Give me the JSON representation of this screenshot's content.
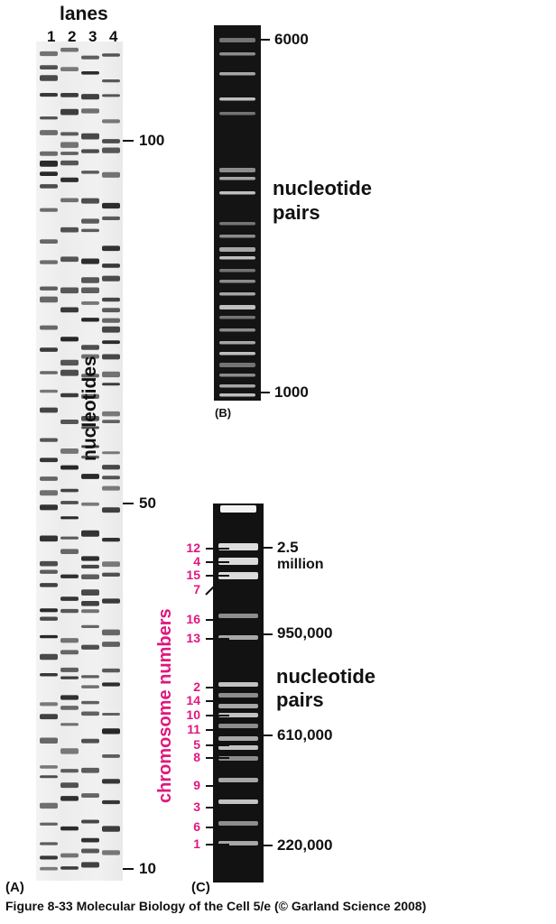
{
  "panelA": {
    "title": "lanes",
    "lane_labels": [
      "1",
      "2",
      "3",
      "4"
    ],
    "axis_label": "nucleotides",
    "marks": [
      {
        "label": "100",
        "value": 100
      },
      {
        "label": "50",
        "value": 50
      },
      {
        "label": "10",
        "value": 10
      }
    ],
    "panel_label": "(A)"
  },
  "panelB": {
    "marks": [
      {
        "label": "6000",
        "value": 6000
      },
      {
        "label": "1000",
        "value": 1000
      }
    ],
    "unit_line1": "nucleotide",
    "unit_line2": "pairs",
    "panel_label": "(B)"
  },
  "panelC": {
    "axis_label": "chromosome numbers",
    "chromosomes": [
      "12",
      "4",
      "15",
      "7",
      "16",
      "13",
      "2",
      "14",
      "10",
      "11",
      "5",
      "8",
      "9",
      "3",
      "6",
      "1"
    ],
    "size_marks": [
      {
        "label": "2.5",
        "label2": "million"
      },
      {
        "label": "950,000"
      },
      {
        "label": "610,000"
      },
      {
        "label": "220,000"
      }
    ],
    "unit_line1": "nucleotide",
    "unit_line2": "pairs",
    "panel_label": "(C)"
  },
  "caption": {
    "figure": "Figure 8-33",
    "text": "Molecular Biology of the Cell 5/e (© Garland Science 2008)"
  },
  "colors": {
    "accent": "#e0177e"
  }
}
